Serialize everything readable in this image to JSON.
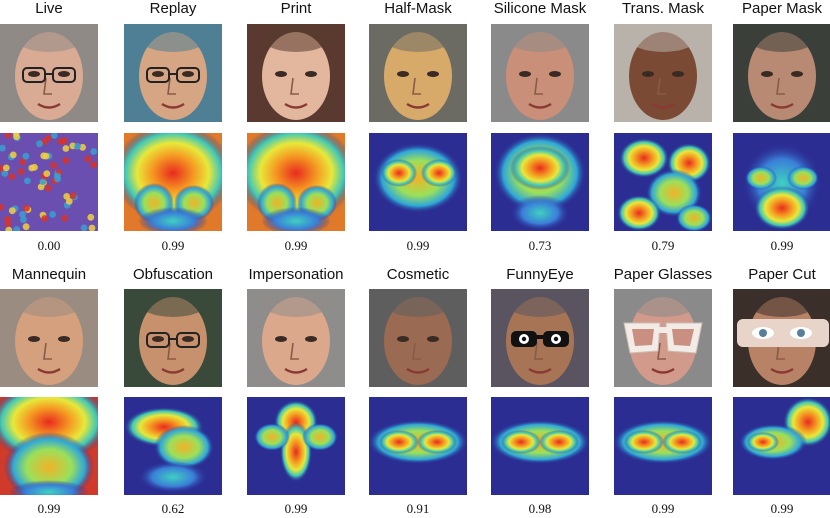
{
  "figure": {
    "rows": [
      {
        "cells": [
          {
            "label": "Live",
            "score": "0.00",
            "skin": "#d9ab95",
            "bg": "#8f8a86",
            "heat": "speckle",
            "accessory": "glasses"
          },
          {
            "label": "Replay",
            "score": "0.99",
            "skin": "#d6a583",
            "bg": "#4f7f95",
            "heat": "face-warm",
            "accessory": "glasses"
          },
          {
            "label": "Print",
            "score": "0.99",
            "skin": "#e3b79d",
            "bg": "#5a3a30",
            "heat": "face-warm",
            "accessory": "none"
          },
          {
            "label": "Half-Mask",
            "score": "0.99",
            "skin": "#d8aa6a",
            "bg": "#6b6b64",
            "heat": "cheeks",
            "accessory": "none"
          },
          {
            "label": "Silicone Mask",
            "score": "0.73",
            "skin": "#c98f78",
            "bg": "#8a8a8a",
            "heat": "center",
            "accessory": "none"
          },
          {
            "label": "Trans. Mask",
            "score": "0.79",
            "skin": "#7a4a34",
            "bg": "#b9b2ab",
            "heat": "patchy",
            "accessory": "none"
          },
          {
            "label": "Paper Mask",
            "score": "0.99",
            "skin": "#b98a73",
            "bg": "#3a3f3a",
            "heat": "lower",
            "accessory": "none"
          }
        ]
      },
      {
        "cells": [
          {
            "label": "Mannequin",
            "score": "0.99",
            "skin": "#d4a07e",
            "bg": "#9a8c80",
            "heat": "top",
            "accessory": "none"
          },
          {
            "label": "Obfuscation",
            "score": "0.62",
            "skin": "#c8916d",
            "bg": "#3a4a3a",
            "heat": "brow",
            "accessory": "glasses"
          },
          {
            "label": "Impersonation",
            "score": "0.99",
            "skin": "#dca88c",
            "bg": "#8f8d8b",
            "heat": "nose",
            "accessory": "none"
          },
          {
            "label": "Cosmetic",
            "score": "0.91",
            "skin": "#9a6a52",
            "bg": "#5e5e5e",
            "heat": "eyes",
            "accessory": "none"
          },
          {
            "label": "FunnyEye",
            "score": "0.98",
            "skin": "#a77556",
            "bg": "#5a5460",
            "heat": "eyes",
            "accessory": "sunglasses"
          },
          {
            "label": "Paper Glasses",
            "score": "0.99",
            "skin": "#d19a8a",
            "bg": "#8a8a8a",
            "heat": "eyes",
            "accessory": "paper-glasses"
          },
          {
            "label": "Paper Cut",
            "score": "0.99",
            "skin": "#b88266",
            "bg": "#3b2f2a",
            "heat": "eyes-right",
            "accessory": "paper-cut"
          }
        ]
      }
    ]
  }
}
